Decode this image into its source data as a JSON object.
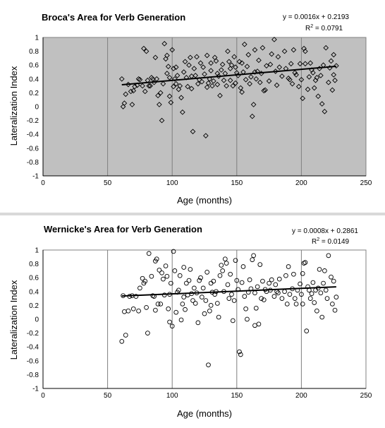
{
  "chart_data": [
    {
      "type": "scatter",
      "marker": "diamond",
      "title": "Broca's Area for Verb Generation",
      "xlabel": "Age (months)",
      "ylabel": "Lateralization Index",
      "xlim": [
        0,
        250
      ],
      "ylim": [
        -1,
        1
      ],
      "xticks": [
        "0",
        "50",
        "100",
        "150",
        "200",
        "250"
      ],
      "yticks": [
        "1",
        "0.8",
        "0.6",
        "0.4",
        "0.2",
        "0",
        "-0.2",
        "-0.4",
        "-0.6",
        "-0.8",
        "-1"
      ],
      "grid": "vertical major gridlines",
      "plot_background": "#c0c0c0",
      "equation": "y = 0.0016x + 0.2193",
      "r2_prefix": "R",
      "r2_exp": "2",
      "r2_value": " = 0.0791",
      "trendline": {
        "slope": 0.0016,
        "intercept": 0.2193,
        "x_range": [
          61,
          227
        ]
      },
      "points": [
        [
          61,
          0.4
        ],
        [
          62,
          0.0
        ],
        [
          63,
          0.05
        ],
        [
          64,
          0.18
        ],
        [
          66,
          0.32
        ],
        [
          68,
          0.22
        ],
        [
          69,
          0.03
        ],
        [
          70,
          0.23
        ],
        [
          71,
          0.29
        ],
        [
          73,
          0.31
        ],
        [
          74,
          0.4
        ],
        [
          75,
          0.39
        ],
        [
          77,
          0.3
        ],
        [
          78,
          0.84
        ],
        [
          79,
          0.22
        ],
        [
          80,
          0.8
        ],
        [
          81,
          0.38
        ],
        [
          82,
          0.3
        ],
        [
          83,
          0.3
        ],
        [
          84,
          0.42
        ],
        [
          85,
          0.4
        ],
        [
          86,
          0.35
        ],
        [
          87,
          0.71
        ],
        [
          88,
          0.4
        ],
        [
          89,
          0.16
        ],
        [
          90,
          0.03
        ],
        [
          91,
          0.2
        ],
        [
          92,
          -0.2
        ],
        [
          93,
          0.33
        ],
        [
          94,
          0.91
        ],
        [
          95,
          0.69
        ],
        [
          96,
          0.74
        ],
        [
          96,
          0.48
        ],
        [
          97,
          0.58
        ],
        [
          98,
          0.42
        ],
        [
          98,
          0.15
        ],
        [
          99,
          0.06
        ],
        [
          100,
          0.82
        ],
        [
          101,
          0.29
        ],
        [
          101,
          0.55
        ],
        [
          102,
          0.4
        ],
        [
          103,
          0.57
        ],
        [
          103,
          0.33
        ],
        [
          104,
          0.45
        ],
        [
          105,
          0.25
        ],
        [
          106,
          0.3
        ],
        [
          107,
          0.13
        ],
        [
          108,
          -0.08
        ],
        [
          109,
          0.5
        ],
        [
          110,
          0.65
        ],
        [
          111,
          0.42
        ],
        [
          112,
          0.29
        ],
        [
          113,
          0.6
        ],
        [
          114,
          0.71
        ],
        [
          115,
          0.26
        ],
        [
          115,
          0.44
        ],
        [
          116,
          -0.36
        ],
        [
          117,
          0.55
        ],
        [
          118,
          0.45
        ],
        [
          119,
          0.72
        ],
        [
          120,
          0.33
        ],
        [
          121,
          0.39
        ],
        [
          122,
          0.63
        ],
        [
          123,
          0.36
        ],
        [
          124,
          0.57
        ],
        [
          125,
          0.47
        ],
        [
          126,
          -0.42
        ],
        [
          127,
          0.28
        ],
        [
          127,
          0.74
        ],
        [
          128,
          0.34
        ],
        [
          129,
          0.4
        ],
        [
          130,
          0.52
        ],
        [
          130,
          0.63
        ],
        [
          131,
          0.3
        ],
        [
          132,
          0.37
        ],
        [
          133,
          0.71
        ],
        [
          134,
          0.66
        ],
        [
          135,
          0.32
        ],
        [
          135,
          0.48
        ],
        [
          136,
          0.44
        ],
        [
          137,
          0.16
        ],
        [
          138,
          0.53
        ],
        [
          139,
          0.61
        ],
        [
          140,
          0.38
        ],
        [
          141,
          0.48
        ],
        [
          142,
          0.3
        ],
        [
          143,
          0.8
        ],
        [
          144,
          0.65
        ],
        [
          145,
          0.38
        ],
        [
          145,
          0.55
        ],
        [
          146,
          0.6
        ],
        [
          147,
          0.3
        ],
        [
          148,
          0.72
        ],
        [
          149,
          0.34
        ],
        [
          149,
          0.57
        ],
        [
          150,
          0.49
        ],
        [
          151,
          0.45
        ],
        [
          152,
          0.65
        ],
        [
          153,
          0.27
        ],
        [
          154,
          0.21
        ],
        [
          154,
          0.63
        ],
        [
          155,
          0.5
        ],
        [
          156,
          0.9
        ],
        [
          157,
          0.39
        ],
        [
          158,
          0.58
        ],
        [
          159,
          0.75
        ],
        [
          160,
          0.33
        ],
        [
          161,
          0.43
        ],
        [
          162,
          -0.14
        ],
        [
          163,
          0.03
        ],
        [
          164,
          0.82
        ],
        [
          164,
          0.5
        ],
        [
          165,
          0.4
        ],
        [
          166,
          0.51
        ],
        [
          167,
          0.67
        ],
        [
          168,
          0.35
        ],
        [
          169,
          0.48
        ],
        [
          170,
          0.85
        ],
        [
          171,
          0.23
        ],
        [
          172,
          0.24
        ],
        [
          173,
          0.59
        ],
        [
          175,
          0.37
        ],
        [
          176,
          0.61
        ],
        [
          177,
          0.76
        ],
        [
          179,
          0.97
        ],
        [
          180,
          0.51
        ],
        [
          181,
          0.31
        ],
        [
          182,
          0.72
        ],
        [
          183,
          0.57
        ],
        [
          185,
          0.44
        ],
        [
          187,
          0.8
        ],
        [
          188,
          0.55
        ],
        [
          190,
          0.41
        ],
        [
          191,
          0.39
        ],
        [
          192,
          0.62
        ],
        [
          193,
          0.33
        ],
        [
          194,
          0.82
        ],
        [
          195,
          0.49
        ],
        [
          196,
          0.46
        ],
        [
          198,
          0.29
        ],
        [
          199,
          0.62
        ],
        [
          200,
          0.39
        ],
        [
          201,
          0.12
        ],
        [
          202,
          0.84
        ],
        [
          203,
          0.8
        ],
        [
          203,
          0.62
        ],
        [
          205,
          0.25
        ],
        [
          206,
          0.43
        ],
        [
          207,
          0.63
        ],
        [
          208,
          0.53
        ],
        [
          209,
          0.49
        ],
        [
          210,
          0.27
        ],
        [
          211,
          0.38
        ],
        [
          212,
          0.42
        ],
        [
          213,
          0.15
        ],
        [
          214,
          0.55
        ],
        [
          215,
          0.45
        ],
        [
          216,
          0.04
        ],
        [
          217,
          0.6
        ],
        [
          218,
          -0.07
        ],
        [
          219,
          0.85
        ],
        [
          221,
          0.35
        ],
        [
          222,
          0.56
        ],
        [
          223,
          0.66
        ],
        [
          224,
          0.24
        ],
        [
          225,
          0.75
        ],
        [
          225,
          0.46
        ],
        [
          226,
          0.38
        ],
        [
          227,
          0.59
        ]
      ]
    },
    {
      "type": "scatter",
      "marker": "circle",
      "title": "Wernicke's Area for Verb Generation",
      "xlabel": "Age (months)",
      "ylabel": "Lateralization Index",
      "xlim": [
        0,
        250
      ],
      "ylim": [
        -1,
        1
      ],
      "xticks": [
        "0",
        "50",
        "100",
        "150",
        "200",
        "250"
      ],
      "yticks": [
        "1",
        "0.8",
        "0.6",
        "0.4",
        "0.2",
        "0",
        "-0.2",
        "-0.4",
        "-0.6",
        "-0.8",
        "-1"
      ],
      "grid": "vertical major gridlines",
      "plot_background": "#ffffff",
      "equation": "y = 0.0008x + 0.2861",
      "r2_prefix": "R",
      "r2_exp": "2",
      "r2_value": " = 0.0149",
      "trendline": {
        "slope": 0.0008,
        "intercept": 0.2861,
        "x_range": [
          61,
          227
        ]
      },
      "points": [
        [
          61,
          -0.32
        ],
        [
          62,
          0.34
        ],
        [
          63,
          0.11
        ],
        [
          64,
          -0.23
        ],
        [
          66,
          0.12
        ],
        [
          67,
          0.33
        ],
        [
          69,
          0.34
        ],
        [
          70,
          0.15
        ],
        [
          72,
          0.33
        ],
        [
          74,
          0.12
        ],
        [
          75,
          0.45
        ],
        [
          77,
          0.59
        ],
        [
          78,
          0.52
        ],
        [
          79,
          0.55
        ],
        [
          80,
          0.17
        ],
        [
          81,
          -0.2
        ],
        [
          82,
          0.95
        ],
        [
          84,
          0.62
        ],
        [
          85,
          0.34
        ],
        [
          86,
          0.33
        ],
        [
          87,
          0.13
        ],
        [
          87,
          0.84
        ],
        [
          88,
          0.87
        ],
        [
          89,
          0.22
        ],
        [
          90,
          0.71
        ],
        [
          91,
          0.22
        ],
        [
          92,
          0.67
        ],
        [
          93,
          0.58
        ],
        [
          94,
          0.35
        ],
        [
          95,
          0.77
        ],
        [
          96,
          0.62
        ],
        [
          97,
          0.15
        ],
        [
          98,
          -0.04
        ],
        [
          98,
          0.36
        ],
        [
          99,
          0.52
        ],
        [
          100,
          -0.1
        ],
        [
          101,
          0.98
        ],
        [
          102,
          0.7
        ],
        [
          103,
          0.1
        ],
        [
          104,
          0.39
        ],
        [
          105,
          0.42
        ],
        [
          106,
          0.63
        ],
        [
          107,
          -0.01
        ],
        [
          108,
          0.22
        ],
        [
          109,
          0.32
        ],
        [
          109,
          0.75
        ],
        [
          110,
          0.14
        ],
        [
          111,
          0.52
        ],
        [
          112,
          0.35
        ],
        [
          113,
          0.56
        ],
        [
          114,
          0.72
        ],
        [
          115,
          0.37
        ],
        [
          116,
          0.27
        ],
        [
          117,
          0.45
        ],
        [
          118,
          0.23
        ],
        [
          119,
          0.38
        ],
        [
          120,
          -0.05
        ],
        [
          121,
          0.56
        ],
        [
          122,
          0.6
        ],
        [
          123,
          0.32
        ],
        [
          124,
          0.45
        ],
        [
          125,
          0.08
        ],
        [
          126,
          0.27
        ],
        [
          127,
          0.68
        ],
        [
          128,
          -0.66
        ],
        [
          129,
          0.12
        ],
        [
          130,
          0.2
        ],
        [
          130,
          0.52
        ],
        [
          131,
          0.39
        ],
        [
          132,
          0.55
        ],
        [
          133,
          0.36
        ],
        [
          134,
          0.4
        ],
        [
          135,
          0.23
        ],
        [
          136,
          0.03
        ],
        [
          137,
          0.63
        ],
        [
          138,
          0.78
        ],
        [
          139,
          0.7
        ],
        [
          140,
          0.4
        ],
        [
          141,
          0.87
        ],
        [
          142,
          0.81
        ],
        [
          143,
          0.5
        ],
        [
          144,
          0.3
        ],
        [
          145,
          0.65
        ],
        [
          146,
          0.36
        ],
        [
          147,
          -0.02
        ],
        [
          148,
          0.27
        ],
        [
          149,
          0.85
        ],
        [
          150,
          0.56
        ],
        [
          151,
          0.43
        ],
        [
          152,
          -0.47
        ],
        [
          153,
          -0.51
        ],
        [
          154,
          0.53
        ],
        [
          155,
          0.76
        ],
        [
          156,
          0.33
        ],
        [
          157,
          0.15
        ],
        [
          158,
          0.0
        ],
        [
          159,
          0.39
        ],
        [
          160,
          0.57
        ],
        [
          161,
          0.44
        ],
        [
          162,
          0.86
        ],
        [
          163,
          0.92
        ],
        [
          164,
          -0.09
        ],
        [
          164,
          0.38
        ],
        [
          165,
          0.16
        ],
        [
          166,
          0.47
        ],
        [
          167,
          -0.07
        ],
        [
          168,
          0.79
        ],
        [
          169,
          0.3
        ],
        [
          170,
          0.55
        ],
        [
          171,
          0.28
        ],
        [
          172,
          0.43
        ],
        [
          173,
          0.4
        ],
        [
          175,
          0.52
        ],
        [
          176,
          0.42
        ],
        [
          177,
          0.57
        ],
        [
          179,
          0.33
        ],
        [
          180,
          0.5
        ],
        [
          181,
          0.4
        ],
        [
          182,
          0.38
        ],
        [
          183,
          0.58
        ],
        [
          185,
          0.3
        ],
        [
          187,
          0.4
        ],
        [
          188,
          0.63
        ],
        [
          189,
          0.22
        ],
        [
          190,
          0.76
        ],
        [
          191,
          0.36
        ],
        [
          193,
          0.44
        ],
        [
          194,
          0.65
        ],
        [
          195,
          0.3
        ],
        [
          196,
          0.22
        ],
        [
          197,
          0.42
        ],
        [
          199,
          0.51
        ],
        [
          200,
          0.36
        ],
        [
          201,
          0.22
        ],
        [
          201,
          0.66
        ],
        [
          202,
          0.81
        ],
        [
          203,
          0.82
        ],
        [
          204,
          -0.17
        ],
        [
          205,
          0.47
        ],
        [
          206,
          0.42
        ],
        [
          207,
          0.3
        ],
        [
          208,
          0.37
        ],
        [
          209,
          0.53
        ],
        [
          210,
          0.24
        ],
        [
          211,
          0.42
        ],
        [
          212,
          0.12
        ],
        [
          213,
          0.45
        ],
        [
          214,
          0.72
        ],
        [
          215,
          0.38
        ],
        [
          216,
          0.03
        ],
        [
          217,
          0.52
        ],
        [
          218,
          0.7
        ],
        [
          219,
          0.42
        ],
        [
          220,
          0.3
        ],
        [
          221,
          0.92
        ],
        [
          223,
          0.61
        ],
        [
          224,
          0.22
        ],
        [
          225,
          0.55
        ],
        [
          226,
          0.13
        ],
        [
          227,
          0.32
        ]
      ]
    }
  ]
}
